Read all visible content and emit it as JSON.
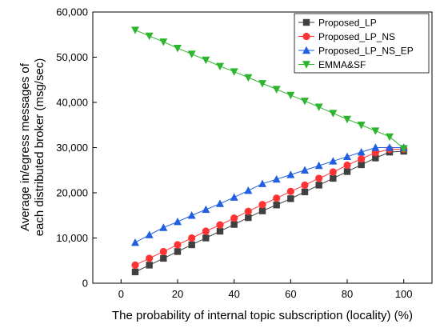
{
  "chart_data": {
    "type": "line",
    "xlabel": "The probability of internal topic subscription (locality) (%)",
    "ylabel_lines": [
      "Average in/egress messages of",
      "each distributed broker (msg/sec)"
    ],
    "xlim": [
      -10,
      110
    ],
    "ylim": [
      0,
      60000
    ],
    "x_ticks": [
      0,
      20,
      40,
      60,
      80,
      100
    ],
    "x_tick_labels": [
      "0",
      "20",
      "40",
      "60",
      "80",
      "100"
    ],
    "y_ticks": [
      0,
      10000,
      20000,
      30000,
      40000,
      50000,
      60000
    ],
    "y_tick_labels": [
      "0",
      "10,000",
      "20,000",
      "30,000",
      "40,000",
      "50,000",
      "60,000"
    ],
    "legend_position": "top-right",
    "x": [
      5,
      10,
      15,
      20,
      25,
      30,
      35,
      40,
      45,
      50,
      55,
      60,
      65,
      70,
      75,
      80,
      85,
      90,
      95,
      100
    ],
    "series": [
      {
        "name": "Proposed_LP",
        "color": "#404040",
        "marker": "square",
        "values": [
          2500,
          4000,
          5500,
          7000,
          8500,
          10000,
          11500,
          13000,
          14500,
          16000,
          17300,
          18700,
          20200,
          21700,
          23200,
          24700,
          26200,
          27700,
          29000,
          29200
        ]
      },
      {
        "name": "Proposed_LP_NS",
        "color": "#ff3333",
        "marker": "circle",
        "values": [
          4000,
          5500,
          7000,
          8500,
          10000,
          11500,
          12900,
          14400,
          15900,
          17400,
          18800,
          20300,
          21700,
          23200,
          24600,
          26100,
          27500,
          28900,
          29600,
          29700
        ]
      },
      {
        "name": "Proposed_LP_NS_EP",
        "color": "#1f5fe0",
        "marker": "triangle-up",
        "values": [
          9000,
          10700,
          12300,
          13600,
          15000,
          16300,
          17600,
          19000,
          20500,
          22000,
          23000,
          24000,
          25000,
          26000,
          27000,
          28000,
          29000,
          30000,
          30000,
          30000
        ]
      },
      {
        "name": "EMMA&SF",
        "color": "#2db52d",
        "marker": "triangle-down",
        "values": [
          56000,
          54700,
          53400,
          52000,
          50700,
          49400,
          48000,
          46800,
          45500,
          44200,
          42900,
          41600,
          40300,
          39000,
          37600,
          36300,
          35000,
          33700,
          32400,
          29800
        ]
      }
    ]
  }
}
